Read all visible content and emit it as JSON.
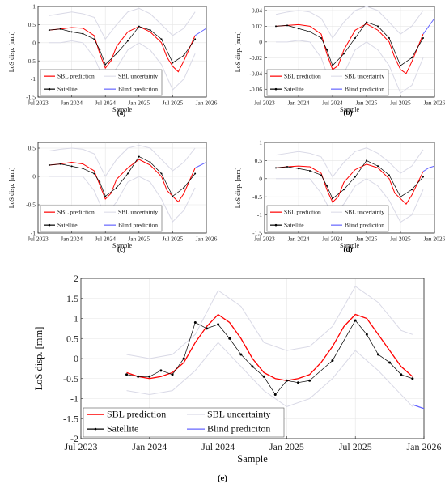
{
  "figure": {
    "panels": [
      {
        "label": "(a)"
      },
      {
        "label": "(b)"
      },
      {
        "label": "(c)"
      },
      {
        "label": "(d)"
      },
      {
        "label": "(e)"
      }
    ]
  },
  "chart_data": [
    {
      "type": "line",
      "panel": "(a)",
      "xlabel": "Sample",
      "ylabel": "LoS disp. [mm]",
      "x_ticks": [
        "Jul 2023",
        "Jan 2024",
        "Jul 2024",
        "Jan 2025",
        "Jul 2025",
        "Jan 2026"
      ],
      "x_range": [
        "2023-07",
        "2026-01"
      ],
      "y_ticks": [
        "-1.5",
        "-1",
        "-0.5",
        "0",
        "0.5",
        "1"
      ],
      "ylim": [
        -1.5,
        1.0
      ],
      "grid": true,
      "legend_placement": "bottom-left",
      "legend": [
        "SBL prediction",
        "SBL uncertainty",
        "Satellite",
        "Blind prediciton"
      ],
      "series": [
        {
          "name": "SBL prediction",
          "color": "#ff0000",
          "style": "line",
          "x": [
            "2023-09",
            "2023-11",
            "2024-01",
            "2024-03",
            "2024-05",
            "2024-06",
            "2024-07",
            "2024-08",
            "2024-09",
            "2024-11",
            "2025-01",
            "2025-03",
            "2025-05",
            "2025-06",
            "2025-07",
            "2025-08",
            "2025-09",
            "2025-11"
          ],
          "y": [
            0.35,
            0.38,
            0.42,
            0.4,
            0.2,
            -0.3,
            -0.7,
            -0.5,
            -0.1,
            0.3,
            0.45,
            0.3,
            0.0,
            -0.4,
            -0.65,
            -0.8,
            -0.5,
            0.2
          ]
        },
        {
          "name": "SBL uncertainty",
          "color": "#d9d9e6",
          "style": "band",
          "x": [
            "2023-09",
            "2023-11",
            "2024-01",
            "2024-03",
            "2024-05",
            "2024-07",
            "2024-09",
            "2024-11",
            "2025-01",
            "2025-03",
            "2025-05",
            "2025-07",
            "2025-09",
            "2025-11"
          ],
          "y_low": [
            0.0,
            0.0,
            0.05,
            0.0,
            -0.4,
            -1.1,
            -0.7,
            -0.2,
            0.0,
            -0.2,
            -0.6,
            -1.3,
            -1.0,
            -0.3
          ],
          "y_high": [
            0.75,
            0.8,
            0.85,
            0.8,
            0.7,
            0.1,
            0.5,
            0.85,
            0.95,
            0.8,
            0.5,
            0.2,
            0.4,
            0.85
          ]
        },
        {
          "name": "Satellite",
          "color": "#000000",
          "style": "marker-line",
          "x": [
            "2023-09",
            "2023-11",
            "2024-01",
            "2024-03",
            "2024-05",
            "2024-06",
            "2024-07",
            "2024-09",
            "2024-11",
            "2025-01",
            "2025-03",
            "2025-05",
            "2025-07",
            "2025-09",
            "2025-11"
          ],
          "y": [
            0.35,
            0.38,
            0.3,
            0.25,
            0.1,
            -0.2,
            -0.6,
            -0.3,
            0.05,
            0.45,
            0.35,
            0.1,
            -0.55,
            -0.35,
            0.1
          ]
        },
        {
          "name": "Blind prediciton",
          "color": "#6666ff",
          "style": "line",
          "x": [
            "2025-11",
            "2025-12",
            "2026-01"
          ],
          "y": [
            0.2,
            0.3,
            0.4
          ]
        }
      ]
    },
    {
      "type": "line",
      "panel": "(b)",
      "xlabel": "Sample",
      "ylabel": "LoS disp. [mm]",
      "x_ticks": [
        "Jul 2023",
        "Jan 2024",
        "Jul 2024",
        "Jan 2025",
        "Jul 2025",
        "Jan 2026"
      ],
      "x_range": [
        "2023-07",
        "2026-01"
      ],
      "y_ticks": [
        "-0.06",
        "-0.04",
        "-0.02",
        "0",
        "0.02",
        "0.04"
      ],
      "ylim": [
        -0.07,
        0.045
      ],
      "grid": true,
      "legend_placement": "bottom-left",
      "legend": [
        "SBL prediction",
        "SBL uncertainty",
        "Satellite",
        "Blind prediciton"
      ],
      "series": [
        {
          "name": "SBL prediction",
          "color": "#ff0000",
          "style": "line",
          "x": [
            "2023-09",
            "2023-11",
            "2024-01",
            "2024-03",
            "2024-05",
            "2024-06",
            "2024-07",
            "2024-08",
            "2024-09",
            "2024-11",
            "2025-01",
            "2025-03",
            "2025-05",
            "2025-06",
            "2025-07",
            "2025-08",
            "2025-09",
            "2025-11"
          ],
          "y": [
            0.02,
            0.021,
            0.022,
            0.02,
            0.01,
            -0.015,
            -0.035,
            -0.03,
            -0.01,
            0.015,
            0.023,
            0.015,
            0.0,
            -0.02,
            -0.035,
            -0.04,
            -0.025,
            0.01
          ]
        },
        {
          "name": "SBL uncertainty",
          "color": "#d9d9e6",
          "style": "band",
          "x": [
            "2023-09",
            "2023-11",
            "2024-01",
            "2024-03",
            "2024-05",
            "2024-07",
            "2024-09",
            "2024-11",
            "2025-01",
            "2025-03",
            "2025-05",
            "2025-07",
            "2025-09",
            "2025-11"
          ],
          "y_low": [
            0.0,
            0.0,
            0.002,
            0.0,
            -0.02,
            -0.06,
            -0.04,
            -0.01,
            0.0,
            -0.01,
            -0.03,
            -0.065,
            -0.055,
            -0.02
          ],
          "y_high": [
            0.035,
            0.038,
            0.04,
            0.038,
            0.03,
            0.005,
            0.025,
            0.04,
            0.045,
            0.04,
            0.025,
            0.01,
            0.02,
            0.04
          ]
        },
        {
          "name": "Satellite",
          "color": "#000000",
          "style": "marker-line",
          "x": [
            "2023-09",
            "2023-11",
            "2024-01",
            "2024-03",
            "2024-05",
            "2024-06",
            "2024-07",
            "2024-09",
            "2024-11",
            "2025-01",
            "2025-03",
            "2025-05",
            "2025-07",
            "2025-09",
            "2025-11"
          ],
          "y": [
            0.02,
            0.021,
            0.017,
            0.013,
            0.005,
            -0.01,
            -0.03,
            -0.015,
            0.005,
            0.025,
            0.02,
            0.005,
            -0.03,
            -0.02,
            0.005
          ]
        },
        {
          "name": "Blind prediciton",
          "color": "#6666ff",
          "style": "line",
          "x": [
            "2025-11",
            "2025-12",
            "2026-01"
          ],
          "y": [
            0.01,
            0.02,
            0.03
          ]
        }
      ]
    },
    {
      "type": "line",
      "panel": "(c)",
      "xlabel": "Sample",
      "ylabel": "LoS disp. [mm]",
      "x_ticks": [
        "Jul 2023",
        "Jan 2024",
        "Jul 2024",
        "Jan 2025",
        "Jul 2025",
        "Jan 2026"
      ],
      "x_range": [
        "2023-07",
        "2026-01"
      ],
      "y_ticks": [
        "-1",
        "-0.5",
        "0",
        "0.5"
      ],
      "ylim": [
        -1.0,
        0.6
      ],
      "grid": true,
      "legend_placement": "bottom-left",
      "legend": [
        "SBL prediction",
        "SBL uncertainty",
        "Satellite",
        "Blind prediciton"
      ],
      "series": [
        {
          "name": "SBL prediction",
          "color": "#ff0000",
          "style": "line",
          "x": [
            "2023-09",
            "2023-11",
            "2024-01",
            "2024-03",
            "2024-05",
            "2024-06",
            "2024-07",
            "2024-08",
            "2024-09",
            "2024-11",
            "2025-01",
            "2025-03",
            "2025-05",
            "2025-06",
            "2025-07",
            "2025-08",
            "2025-09",
            "2025-11"
          ],
          "y": [
            0.2,
            0.22,
            0.25,
            0.22,
            0.1,
            -0.15,
            -0.4,
            -0.3,
            -0.05,
            0.15,
            0.3,
            0.2,
            0.0,
            -0.25,
            -0.35,
            -0.45,
            -0.3,
            0.15
          ]
        },
        {
          "name": "SBL uncertainty",
          "color": "#d9d9e6",
          "style": "band",
          "x": [
            "2023-09",
            "2023-11",
            "2024-01",
            "2024-03",
            "2024-05",
            "2024-07",
            "2024-09",
            "2024-11",
            "2025-01",
            "2025-03",
            "2025-05",
            "2025-07",
            "2025-09",
            "2025-11"
          ],
          "y_low": [
            0.0,
            0.0,
            0.0,
            0.0,
            -0.25,
            -0.7,
            -0.45,
            -0.1,
            0.0,
            -0.1,
            -0.4,
            -0.8,
            -0.6,
            -0.2
          ],
          "y_high": [
            0.45,
            0.48,
            0.5,
            0.48,
            0.4,
            0.0,
            0.3,
            0.5,
            0.55,
            0.5,
            0.3,
            0.1,
            0.25,
            0.5
          ]
        },
        {
          "name": "Satellite",
          "color": "#000000",
          "style": "marker-line",
          "x": [
            "2023-09",
            "2023-11",
            "2024-01",
            "2024-03",
            "2024-05",
            "2024-06",
            "2024-07",
            "2024-09",
            "2024-11",
            "2025-01",
            "2025-03",
            "2025-05",
            "2025-07",
            "2025-09",
            "2025-11"
          ],
          "y": [
            0.2,
            0.22,
            0.18,
            0.14,
            0.05,
            -0.1,
            -0.35,
            -0.2,
            0.05,
            0.35,
            0.25,
            0.05,
            -0.35,
            -0.2,
            0.05
          ]
        },
        {
          "name": "Blind prediciton",
          "color": "#6666ff",
          "style": "line",
          "x": [
            "2025-11",
            "2025-12",
            "2026-01"
          ],
          "y": [
            0.15,
            0.2,
            0.25
          ]
        }
      ]
    },
    {
      "type": "line",
      "panel": "(d)",
      "xlabel": "Sample",
      "ylabel": "LoS disp. [mm]",
      "x_ticks": [
        "Jul 2023",
        "Jan 2024",
        "Jul 2024",
        "Jan 2025",
        "Jul 2025",
        "Jan 2026"
      ],
      "x_range": [
        "2023-07",
        "2026-01"
      ],
      "y_ticks": [
        "-1.5",
        "-1",
        "-0.5",
        "0",
        "0.5",
        "1"
      ],
      "ylim": [
        -1.5,
        1.0
      ],
      "grid": true,
      "legend_placement": "bottom-left",
      "legend": [
        "SBL prediction",
        "SBL uncertainty",
        "Satellite",
        "Blind prediciton"
      ],
      "series": [
        {
          "name": "SBL prediction",
          "color": "#ff0000",
          "style": "line",
          "x": [
            "2023-09",
            "2023-11",
            "2024-01",
            "2024-03",
            "2024-05",
            "2024-06",
            "2024-07",
            "2024-08",
            "2024-09",
            "2024-11",
            "2025-01",
            "2025-03",
            "2025-05",
            "2025-06",
            "2025-07",
            "2025-08",
            "2025-09",
            "2025-11"
          ],
          "y": [
            0.3,
            0.33,
            0.35,
            0.33,
            0.15,
            -0.3,
            -0.65,
            -0.5,
            -0.1,
            0.25,
            0.4,
            0.3,
            0.0,
            -0.4,
            -0.55,
            -0.7,
            -0.45,
            0.2
          ]
        },
        {
          "name": "SBL uncertainty",
          "color": "#d9d9e6",
          "style": "band",
          "x": [
            "2023-09",
            "2023-11",
            "2024-01",
            "2024-03",
            "2024-05",
            "2024-07",
            "2024-09",
            "2024-11",
            "2025-01",
            "2025-03",
            "2025-05",
            "2025-07",
            "2025-09",
            "2025-11"
          ],
          "y_low": [
            0.0,
            0.0,
            0.0,
            0.0,
            -0.4,
            -1.0,
            -0.7,
            -0.2,
            0.0,
            -0.2,
            -0.6,
            -1.2,
            -1.0,
            -0.3
          ],
          "y_high": [
            0.65,
            0.7,
            0.75,
            0.7,
            0.6,
            0.05,
            0.45,
            0.75,
            0.85,
            0.7,
            0.45,
            0.15,
            0.35,
            0.8
          ]
        },
        {
          "name": "Satellite",
          "color": "#000000",
          "style": "marker-line",
          "x": [
            "2023-09",
            "2023-11",
            "2024-01",
            "2024-03",
            "2024-05",
            "2024-06",
            "2024-07",
            "2024-09",
            "2024-11",
            "2025-01",
            "2025-03",
            "2025-05",
            "2025-07",
            "2025-09",
            "2025-11"
          ],
          "y": [
            0.3,
            0.33,
            0.28,
            0.22,
            0.1,
            -0.2,
            -0.55,
            -0.3,
            0.05,
            0.5,
            0.35,
            0.1,
            -0.5,
            -0.3,
            0.05
          ]
        },
        {
          "name": "Blind prediciton",
          "color": "#6666ff",
          "style": "line",
          "x": [
            "2025-11",
            "2025-12",
            "2026-01"
          ],
          "y": [
            0.2,
            0.3,
            0.35
          ]
        }
      ]
    },
    {
      "type": "line",
      "panel": "(e)",
      "xlabel": "Sample",
      "ylabel": "LoS disp. [mm]",
      "x_ticks": [
        "Jul 2023",
        "Jan 2024",
        "Jul 2024",
        "Jan 2025",
        "Jul 2025",
        "Jan 2026"
      ],
      "x_range": [
        "2023-07",
        "2026-01"
      ],
      "y_ticks": [
        "-2",
        "-1.5",
        "-1",
        "-0.5",
        "0",
        "0.5",
        "1",
        "1.5",
        "2"
      ],
      "ylim": [
        -2.0,
        2.0
      ],
      "grid": true,
      "legend_placement": "bottom-left",
      "legend": [
        "SBL prediction",
        "SBL uncertainty",
        "Satellite",
        "Blind prediciton"
      ],
      "series": [
        {
          "name": "SBL prediction",
          "color": "#ff0000",
          "style": "line",
          "x": [
            "2023-11",
            "2023-12",
            "2024-01",
            "2024-02",
            "2024-03",
            "2024-04",
            "2024-05",
            "2024-06",
            "2024-07",
            "2024-08",
            "2024-09",
            "2024-10",
            "2024-11",
            "2024-12",
            "2025-01",
            "2025-02",
            "2025-03",
            "2025-04",
            "2025-05",
            "2025-06",
            "2025-07",
            "2025-08",
            "2025-09",
            "2025-10",
            "2025-11",
            "2025-12"
          ],
          "y": [
            -0.35,
            -0.45,
            -0.5,
            -0.45,
            -0.35,
            -0.1,
            0.4,
            0.8,
            1.1,
            0.9,
            0.5,
            0.0,
            -0.35,
            -0.5,
            -0.55,
            -0.5,
            -0.4,
            -0.1,
            0.3,
            0.8,
            1.1,
            1.0,
            0.6,
            0.2,
            -0.2,
            -0.45
          ]
        },
        {
          "name": "SBL uncertainty",
          "color": "#d9d9e6",
          "style": "band",
          "x": [
            "2023-11",
            "2024-01",
            "2024-03",
            "2024-05",
            "2024-07",
            "2024-09",
            "2024-11",
            "2025-01",
            "2025-03",
            "2025-05",
            "2025-07",
            "2025-09",
            "2025-11",
            "2025-12"
          ],
          "y_low": [
            -0.8,
            -0.9,
            -0.8,
            -0.3,
            0.4,
            -0.2,
            -0.8,
            -1.2,
            -1.0,
            -0.5,
            0.2,
            -0.3,
            -0.9,
            -1.2
          ],
          "y_high": [
            0.1,
            0.0,
            0.1,
            0.6,
            1.7,
            1.3,
            0.4,
            0.2,
            0.3,
            0.8,
            1.8,
            1.4,
            0.7,
            0.6
          ]
        },
        {
          "name": "Satellite",
          "color": "#000000",
          "style": "marker-line",
          "x": [
            "2023-11",
            "2023-12",
            "2024-01",
            "2024-02",
            "2024-03",
            "2024-04",
            "2024-05",
            "2024-06",
            "2024-07",
            "2024-08",
            "2024-09",
            "2024-10",
            "2024-11",
            "2024-12",
            "2025-01",
            "2025-02",
            "2025-03",
            "2025-05",
            "2025-07",
            "2025-08",
            "2025-09",
            "2025-10",
            "2025-11",
            "2025-12"
          ],
          "y": [
            -0.4,
            -0.45,
            -0.45,
            -0.3,
            -0.4,
            0.0,
            0.9,
            0.75,
            0.85,
            0.5,
            0.1,
            -0.2,
            -0.45,
            -0.9,
            -0.55,
            -0.6,
            -0.55,
            -0.05,
            0.95,
            0.6,
            0.1,
            -0.1,
            -0.4,
            -0.5
          ]
        },
        {
          "name": "Blind prediciton",
          "color": "#6666ff",
          "style": "line",
          "x": [
            "2025-12",
            "2026-01"
          ],
          "y": [
            -1.15,
            -1.25
          ]
        }
      ]
    }
  ]
}
